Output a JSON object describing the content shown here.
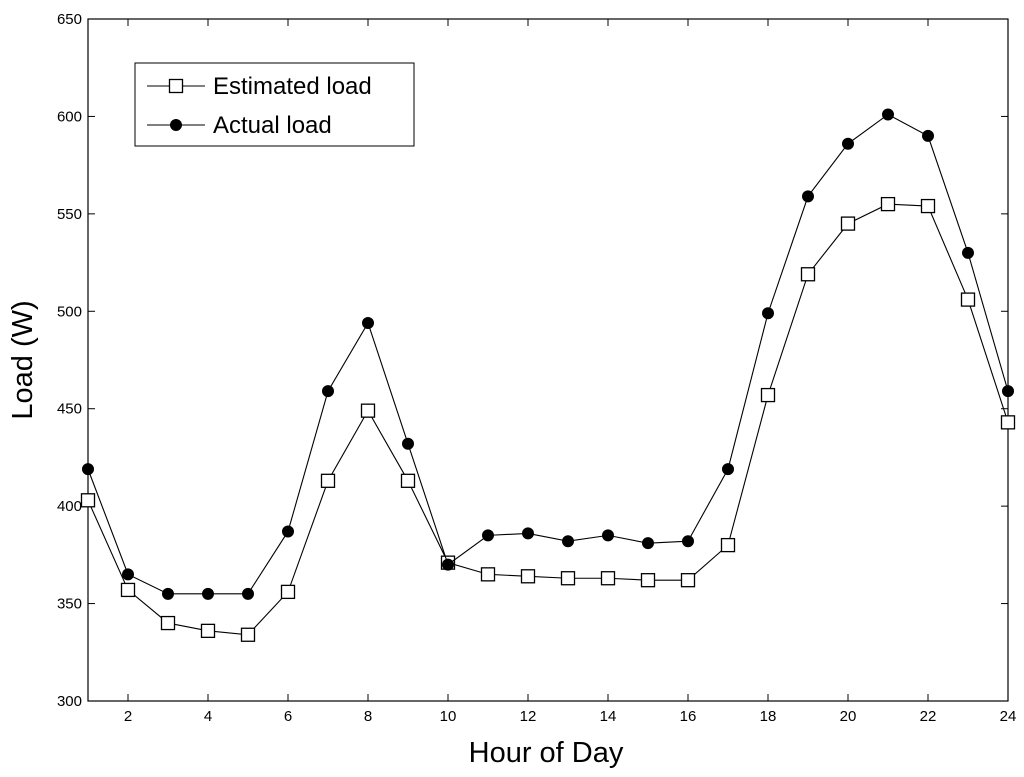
{
  "chart_data": {
    "type": "line",
    "title": "",
    "xlabel": "Hour of Day",
    "ylabel": "Load (W)",
    "xlim": [
      1,
      24
    ],
    "ylim": [
      300,
      650
    ],
    "xticks": [
      2,
      4,
      6,
      8,
      10,
      12,
      14,
      16,
      18,
      20,
      22,
      24
    ],
    "yticks": [
      300,
      350,
      400,
      450,
      500,
      550,
      600,
      650
    ],
    "grid": false,
    "legend_position": "top-left",
    "x": [
      1,
      2,
      3,
      4,
      5,
      6,
      7,
      8,
      9,
      10,
      11,
      12,
      13,
      14,
      15,
      16,
      17,
      18,
      19,
      20,
      21,
      22,
      23,
      24
    ],
    "series": [
      {
        "name": "Estimated load",
        "marker": "open-square",
        "color": "#000000",
        "values": [
          403,
          357,
          340,
          336,
          334,
          356,
          413,
          449,
          413,
          371,
          365,
          364,
          363,
          363,
          362,
          362,
          380,
          457,
          519,
          545,
          555,
          554,
          506,
          443
        ]
      },
      {
        "name": "Actual load",
        "marker": "filled-circle",
        "color": "#000000",
        "values": [
          419,
          365,
          355,
          355,
          355,
          387,
          459,
          494,
          432,
          370,
          385,
          386,
          382,
          385,
          381,
          382,
          419,
          499,
          559,
          586,
          601,
          590,
          530,
          459
        ]
      }
    ]
  }
}
